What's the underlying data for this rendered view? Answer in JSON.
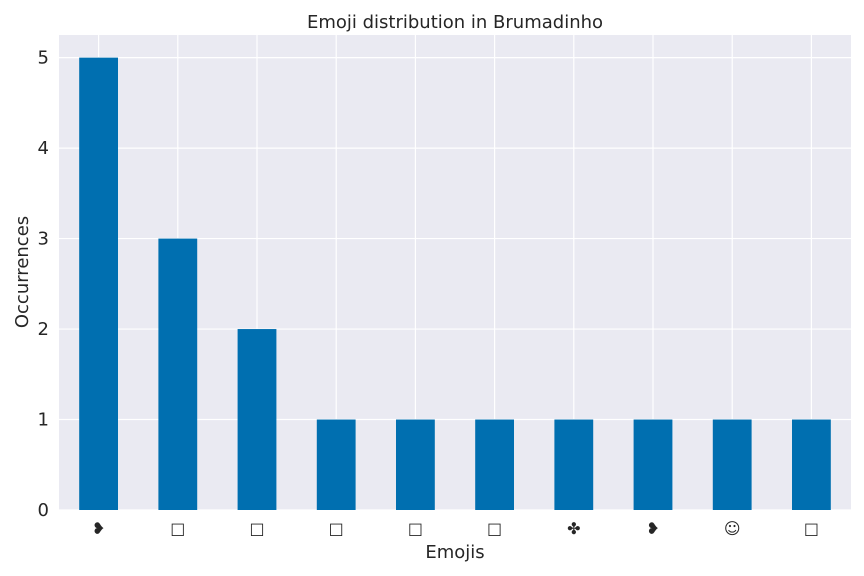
{
  "chart_data": {
    "type": "bar",
    "title": "Emoji distribution in Brumadinho",
    "xlabel": "Emojis",
    "ylabel": "Occurrences",
    "categories": [
      "❥",
      "□",
      "□",
      "□",
      "□",
      "□",
      "✤",
      "❥",
      "☺",
      "□"
    ],
    "values": [
      5,
      3,
      2,
      1,
      1,
      1,
      1,
      1,
      1,
      1
    ],
    "ylim": [
      0,
      5.25
    ],
    "yticks": [
      0,
      1,
      2,
      3,
      4,
      5
    ],
    "grid": true,
    "bar_color": "#006fb0",
    "background_color": "#eaeaf2"
  }
}
